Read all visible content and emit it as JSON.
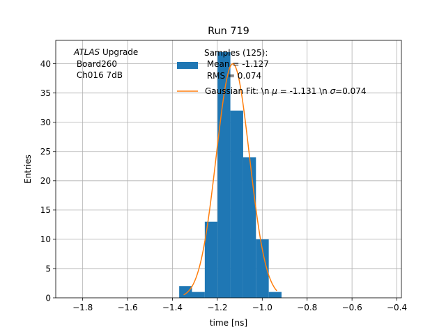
{
  "chart_data": {
    "type": "bar",
    "title": "Run 719",
    "xlabel": "time [ns]",
    "ylabel": "Entries",
    "xlim": [
      -1.92,
      -0.38
    ],
    "ylim": [
      0,
      44
    ],
    "grid": true,
    "xticks": [
      -1.8,
      -1.6,
      -1.4,
      -1.2,
      -1.0,
      -0.8,
      -0.6,
      -0.4
    ],
    "xtick_labels": [
      "−1.8",
      "−1.6",
      "−1.4",
      "−1.2",
      "−1.0",
      "−0.8",
      "−0.6",
      "−0.4"
    ],
    "yticks": [
      0,
      5,
      10,
      15,
      20,
      25,
      30,
      35,
      40
    ],
    "ytick_labels": [
      "0",
      "5",
      "10",
      "15",
      "20",
      "25",
      "30",
      "35",
      "40"
    ],
    "annotation": {
      "italic": "ATLAS",
      "rest": " Upgrade",
      "line2": " Board260",
      "line3": " Ch016 7dB",
      "position": "top-left"
    },
    "histogram": {
      "name_lines": [
        "Samples (125):",
        " Mean = -1.127",
        " RMS = 0.074"
      ],
      "color": "#1f77b4",
      "bin_edges": [
        -1.37,
        -1.313,
        -1.256,
        -1.199,
        -1.142,
        -1.085,
        -1.028,
        -0.971,
        -0.914
      ],
      "counts": [
        2,
        1,
        13,
        42,
        32,
        24,
        10,
        1
      ]
    },
    "fit": {
      "name": "Gaussian Fit: \\n μ = -1.131 \\n σ=0.074",
      "name_parts": [
        "Gaussian Fit: \\n ",
        "μ",
        " = -1.131 \\n ",
        "σ",
        "=0.074"
      ],
      "color": "#ff7f0e",
      "mu": -1.131,
      "sigma": 0.074,
      "amplitude": 40,
      "x_range": [
        -1.35,
        -0.935
      ]
    },
    "legend_position": "top-right"
  }
}
